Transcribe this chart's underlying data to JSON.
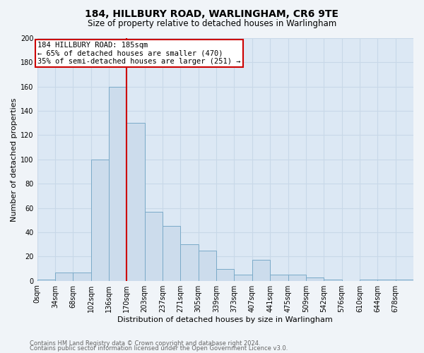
{
  "title1": "184, HILLBURY ROAD, WARLINGHAM, CR6 9TE",
  "title2": "Size of property relative to detached houses in Warlingham",
  "xlabel": "Distribution of detached houses by size in Warlingham",
  "ylabel": "Number of detached properties",
  "footer1": "Contains HM Land Registry data © Crown copyright and database right 2024.",
  "footer2": "Contains public sector information licensed under the Open Government Licence v3.0.",
  "bin_labels": [
    "0sqm",
    "34sqm",
    "68sqm",
    "102sqm",
    "136sqm",
    "170sqm",
    "203sqm",
    "237sqm",
    "271sqm",
    "305sqm",
    "339sqm",
    "373sqm",
    "407sqm",
    "441sqm",
    "475sqm",
    "509sqm",
    "542sqm",
    "576sqm",
    "610sqm",
    "644sqm",
    "678sqm"
  ],
  "bar_heights": [
    1,
    7,
    7,
    100,
    160,
    130,
    57,
    45,
    30,
    25,
    10,
    5,
    17,
    5,
    5,
    3,
    1,
    0,
    1,
    1,
    1
  ],
  "bar_color": "#ccdcec",
  "bar_edge_color": "#7aaac8",
  "property_line_x": 5,
  "annotation_text1": "184 HILLBURY ROAD: 185sqm",
  "annotation_text2": "← 65% of detached houses are smaller (470)",
  "annotation_text3": "35% of semi-detached houses are larger (251) →",
  "annotation_box_color": "#ffffff",
  "annotation_box_edge": "#cc0000",
  "line_color": "#cc0000",
  "ylim": [
    0,
    200
  ],
  "yticks": [
    0,
    20,
    40,
    60,
    80,
    100,
    120,
    140,
    160,
    180,
    200
  ],
  "background_color": "#dce8f4",
  "grid_color": "#c8d8e8",
  "fig_bg_color": "#f0f4f8",
  "title1_fontsize": 10,
  "title2_fontsize": 8.5,
  "ylabel_fontsize": 8,
  "xlabel_fontsize": 8,
  "tick_fontsize": 7,
  "footer_fontsize": 6,
  "annotation_fontsize": 7.5
}
